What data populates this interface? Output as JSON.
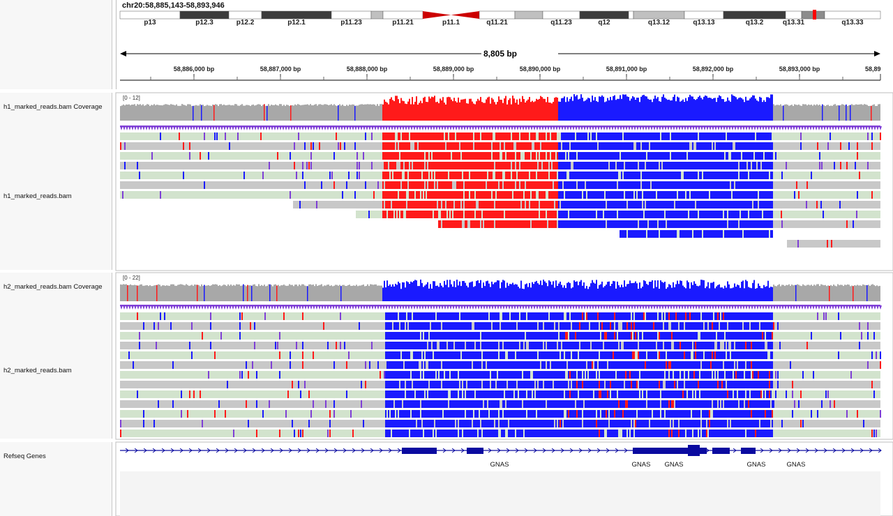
{
  "locus": "chr20:58,885,143-58,893,946",
  "cytobands": [
    {
      "name": "p13",
      "stain": "white"
    },
    {
      "name": "p12.3",
      "stain": "dark"
    },
    {
      "name": "p12.2",
      "stain": "white"
    },
    {
      "name": "p12.1",
      "stain": "dark"
    },
    {
      "name": "p11.23",
      "stain": "white"
    },
    {
      "name": "",
      "stain": "light"
    },
    {
      "name": "p11.21",
      "stain": "white"
    },
    {
      "name": "p11.1",
      "stain": "centromere"
    },
    {
      "name": "q11.21",
      "stain": "white"
    },
    {
      "name": "",
      "stain": "light"
    },
    {
      "name": "q11.23",
      "stain": "white"
    },
    {
      "name": "q12",
      "stain": "dark"
    },
    {
      "name": "",
      "stain": "white"
    },
    {
      "name": "q13.12",
      "stain": "light"
    },
    {
      "name": "q13.13",
      "stain": "white"
    },
    {
      "name": "q13.2",
      "stain": "dark"
    },
    {
      "name": "q13.31",
      "stain": "white"
    },
    {
      "name": "",
      "stain": "mid"
    },
    {
      "name": "q13.33",
      "stain": "white"
    }
  ],
  "ruler": {
    "span_label": "8,805 bp",
    "ticks": [
      "58,886,000 bp",
      "58,887,000 bp",
      "58,888,000 bp",
      "58,889,000 bp",
      "58,890,000 bp",
      "58,891,000 bp",
      "58,892,000 bp",
      "58,893,000 bp",
      "58,89"
    ]
  },
  "tracks": {
    "h1_coverage": {
      "name": "h1_marked_reads.bam Coverage",
      "range": "[0 - 12]"
    },
    "h1_reads": {
      "name": "h1_marked_reads.bam"
    },
    "h2_coverage": {
      "name": "h2_marked_reads.bam Coverage",
      "range": "[0 - 22]"
    },
    "h2_reads": {
      "name": "h2_marked_reads.bam"
    },
    "genes": {
      "name": "Refseq Genes",
      "labels": [
        "GNAS",
        "GNAS",
        "GNAS",
        "GNAS",
        "GNAS"
      ]
    }
  },
  "colors": {
    "coverage_gray": "#a8a8a8",
    "methyl_red": "#ff1a1a",
    "unmethyl_blue": "#1a1aff",
    "read_gray": "#c8c8c8",
    "read_green": "#d2e3cd",
    "insertion_purple": "#7f3fd6",
    "gene_navy": "#0a0aa0",
    "centromere_red": "#cc0000"
  }
}
